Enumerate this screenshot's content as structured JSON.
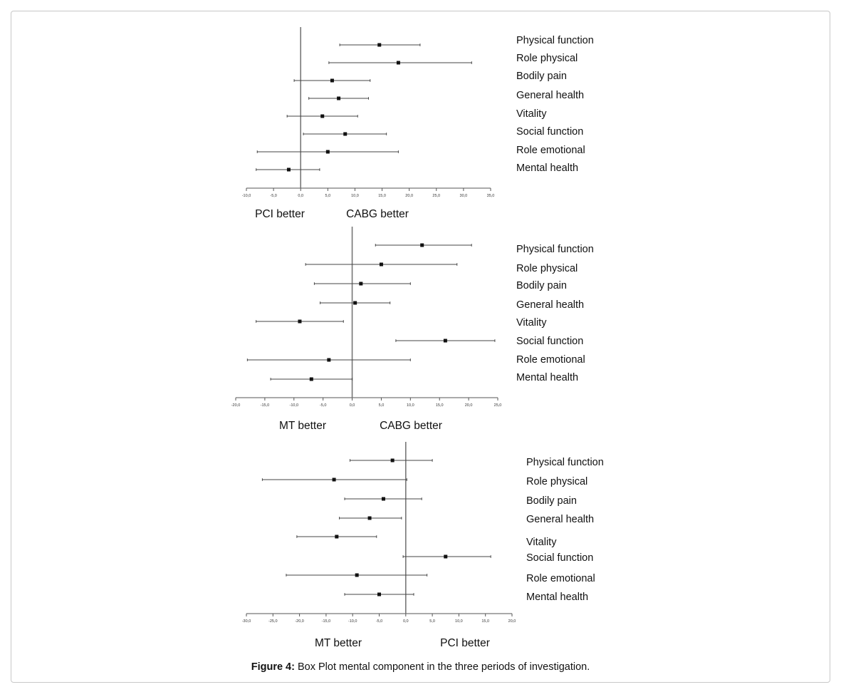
{
  "caption": {
    "label": "Figure 4:",
    "text": "Box Plot mental component in the three periods of investigation."
  },
  "chart_data": [
    {
      "type": "forest",
      "xlim": [
        -10,
        35
      ],
      "ticks": [
        -10,
        -5,
        0,
        5,
        10,
        15,
        20,
        25,
        30,
        35
      ],
      "tick_labels": [
        "-10,0",
        "-5,0",
        "0,0",
        "5,0",
        "10,0",
        "15,0",
        "20,0",
        "25,0",
        "30,0",
        "35,0"
      ],
      "left_label": "PCI better",
      "right_label": "CABG better",
      "categories": [
        "Physical function",
        "Role physical",
        "Bodily pain",
        "General health",
        "Vitality",
        "Social function",
        "Role emotional",
        "Mental health"
      ],
      "estimate": [
        14.5,
        18,
        5.8,
        7,
        4,
        8.2,
        5,
        -2.2
      ],
      "lower": [
        7.2,
        5.2,
        -1.2,
        1.5,
        -2.5,
        0.5,
        -8,
        -8.2
      ],
      "upper": [
        22,
        31.5,
        12.8,
        12.5,
        10.5,
        15.8,
        18,
        3.5
      ]
    },
    {
      "type": "forest",
      "xlim": [
        -20,
        25
      ],
      "ticks": [
        -20,
        -15,
        -10,
        -5,
        0,
        5,
        10,
        15,
        20,
        25
      ],
      "tick_labels": [
        "-20,0",
        "-15,0",
        "-10,0",
        "-5,0",
        "0,0",
        "5,0",
        "10,0",
        "15,0",
        "20,0",
        "25,0"
      ],
      "left_label": "MT better",
      "right_label": "CABG better",
      "categories": [
        "Physical function",
        "Role physical",
        "Bodily pain",
        "General health",
        "Vitality",
        "Social function",
        "Role emotional",
        "Mental health"
      ],
      "estimate": [
        12,
        5,
        1.5,
        0.5,
        -9,
        16,
        -4,
        -7
      ],
      "lower": [
        4,
        -8,
        -6.5,
        -5.5,
        -16.5,
        7.5,
        -18,
        -14
      ],
      "upper": [
        20.5,
        18,
        10,
        6.5,
        -1.5,
        24.5,
        10,
        0
      ]
    },
    {
      "type": "forest",
      "xlim": [
        -30,
        20
      ],
      "ticks": [
        -30,
        -25,
        -20,
        -15,
        -10,
        -5,
        0,
        5,
        10,
        15,
        20
      ],
      "tick_labels": [
        "-30,0",
        "-25,0",
        "-20,0",
        "-15,0",
        "-10,0",
        "-5,0",
        "0,0",
        "5,0",
        "10,0",
        "15,0",
        "20,0"
      ],
      "left_label": "MT better",
      "right_label": "PCI better",
      "categories": [
        "Physical function",
        "Role physical",
        "Bodily pain",
        "General health",
        "Vitality",
        "Social function",
        "Role emotional",
        "Mental health"
      ],
      "estimate": [
        -2.5,
        -13.5,
        -4.2,
        -6.8,
        -13,
        7.5,
        -9.2,
        -5
      ],
      "lower": [
        -10.5,
        -27,
        -11.5,
        -12.5,
        -20.5,
        -0.5,
        -22.5,
        -11.5
      ],
      "upper": [
        5,
        0.2,
        3,
        -0.8,
        -5.5,
        16,
        4,
        1.5
      ]
    }
  ]
}
